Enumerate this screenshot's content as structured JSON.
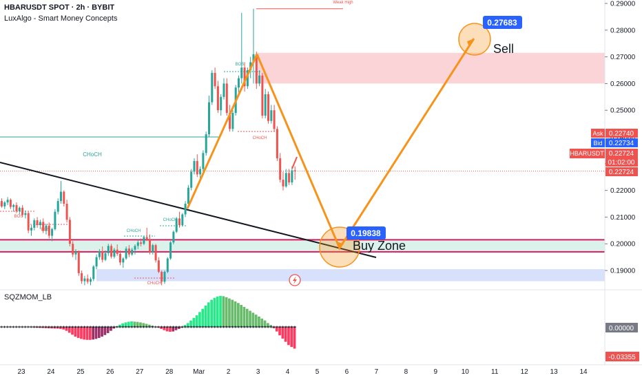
{
  "header": {
    "symbol": "HBARUSDT SPOT · 2h · BYBIT",
    "indicator": "LuxAlgo - Smart Money Concepts"
  },
  "oscillator": {
    "title": "SQZMOM_LB",
    "zero_label": "0.00000",
    "value_label": "-0.03355"
  },
  "price_axis": {
    "ticks": [
      "0.29000",
      "0.28000",
      "0.27000",
      "0.26000",
      "0.25000",
      "0.24000",
      "0.23000",
      "0.22000",
      "0.21000",
      "0.20000",
      "0.19000"
    ],
    "ask_tag": "Ask",
    "ask_value": "0.22740",
    "bid_tag": "Bid",
    "bid_value": "0.22734",
    "symbol_tag": "HBARUSDT",
    "last_value": "0.22724",
    "countdown": "01:02:00",
    "last_value2": "0.22724"
  },
  "time_axis": {
    "labels": [
      "23",
      "24",
      "25",
      "26",
      "27",
      "28",
      "Mar",
      "2",
      "3",
      "4",
      "5",
      "6",
      "7",
      "8",
      "9",
      "10",
      "11",
      "12",
      "13",
      "14"
    ]
  },
  "annotations": {
    "weak_high": "Weak High",
    "choch_big": "CHoCH",
    "bos_top": "BOS",
    "choch_red_top": "CHoCH",
    "bos_left1": "BOS",
    "bos_left2": "BOS",
    "choch_mid1": "CHoCH",
    "choch_mid2": "CHoCH",
    "choch_red_low": "CHoCH",
    "target_price": "0.27683",
    "target_text": "Sell",
    "buy_price": "0.19838",
    "buy_text": "Buy Zone"
  },
  "colors": {
    "up": "#26a69a",
    "down": "#ef5350",
    "orange": "#f7931a",
    "blue": "#2962ff",
    "crimson": "#d81b60"
  },
  "chart_data": {
    "type": "candlestick",
    "ylim": [
      0.1835,
      0.2905
    ],
    "candles": [
      [
        0.216,
        0.217,
        0.2135,
        0.214
      ],
      [
        0.214,
        0.216,
        0.213,
        0.2155
      ],
      [
        0.2155,
        0.2175,
        0.2145,
        0.2165
      ],
      [
        0.2165,
        0.217,
        0.213,
        0.2138
      ],
      [
        0.2138,
        0.215,
        0.212,
        0.2145
      ],
      [
        0.2145,
        0.2155,
        0.2115,
        0.2122
      ],
      [
        0.2122,
        0.214,
        0.211,
        0.2135
      ],
      [
        0.2135,
        0.2145,
        0.21,
        0.2108
      ],
      [
        0.2108,
        0.2125,
        0.2095,
        0.2115
      ],
      [
        0.2115,
        0.212,
        0.204,
        0.205
      ],
      [
        0.205,
        0.207,
        0.203,
        0.206
      ],
      [
        0.206,
        0.2095,
        0.205,
        0.2088
      ],
      [
        0.2088,
        0.21,
        0.206,
        0.207
      ],
      [
        0.207,
        0.209,
        0.2055,
        0.2082
      ],
      [
        0.2082,
        0.2095,
        0.204,
        0.2048
      ],
      [
        0.2048,
        0.2075,
        0.2035,
        0.2068
      ],
      [
        0.2068,
        0.208,
        0.202,
        0.203
      ],
      [
        0.203,
        0.206,
        0.201,
        0.2055
      ],
      [
        0.2055,
        0.213,
        0.205,
        0.212
      ],
      [
        0.212,
        0.217,
        0.211,
        0.216
      ],
      [
        0.216,
        0.2235,
        0.215,
        0.2195
      ],
      [
        0.2195,
        0.22,
        0.214,
        0.215
      ],
      [
        0.215,
        0.2165,
        0.208,
        0.209
      ],
      [
        0.209,
        0.21,
        0.199,
        0.2
      ],
      [
        0.2,
        0.201,
        0.195,
        0.196
      ],
      [
        0.196,
        0.198,
        0.194,
        0.197
      ],
      [
        0.197,
        0.1975,
        0.188,
        0.189
      ],
      [
        0.189,
        0.19,
        0.185,
        0.186
      ],
      [
        0.186,
        0.188,
        0.1845,
        0.187
      ],
      [
        0.187,
        0.1885,
        0.185,
        0.1858
      ],
      [
        0.1858,
        0.1875,
        0.1845,
        0.1868
      ],
      [
        0.1868,
        0.192,
        0.186,
        0.1915
      ],
      [
        0.1915,
        0.196,
        0.1905,
        0.195
      ],
      [
        0.195,
        0.198,
        0.194,
        0.1972
      ],
      [
        0.1972,
        0.199,
        0.193,
        0.194
      ],
      [
        0.194,
        0.1975,
        0.1935,
        0.1965
      ],
      [
        0.1965,
        0.2,
        0.1955,
        0.1992
      ],
      [
        0.1992,
        0.2,
        0.1945,
        0.1952
      ],
      [
        0.1952,
        0.1985,
        0.1945,
        0.1978
      ],
      [
        0.1978,
        0.1998,
        0.1955,
        0.1962
      ],
      [
        0.1962,
        0.1975,
        0.192,
        0.193
      ],
      [
        0.193,
        0.195,
        0.191,
        0.1945
      ],
      [
        0.1945,
        0.199,
        0.194,
        0.1982
      ],
      [
        0.1982,
        0.1995,
        0.195,
        0.196
      ],
      [
        0.196,
        0.1985,
        0.1955,
        0.1978
      ],
      [
        0.1978,
        0.1998,
        0.196,
        0.1992
      ],
      [
        0.1992,
        0.2015,
        0.198,
        0.2005
      ],
      [
        0.2005,
        0.202,
        0.199,
        0.2
      ],
      [
        0.2,
        0.203,
        0.1995,
        0.2025
      ],
      [
        0.2025,
        0.206,
        0.201,
        0.2015
      ],
      [
        0.2015,
        0.2035,
        0.196,
        0.1968
      ],
      [
        0.1968,
        0.2,
        0.196,
        0.1995
      ],
      [
        0.1995,
        0.2,
        0.193,
        0.1938
      ],
      [
        0.1938,
        0.195,
        0.189,
        0.1895
      ],
      [
        0.1895,
        0.19,
        0.1845,
        0.1858
      ],
      [
        0.1858,
        0.19,
        0.185,
        0.1895
      ],
      [
        0.1895,
        0.195,
        0.189,
        0.1945
      ],
      [
        0.1945,
        0.201,
        0.194,
        0.2005
      ],
      [
        0.2005,
        0.205,
        0.1998,
        0.2045
      ],
      [
        0.2045,
        0.21,
        0.204,
        0.2095
      ],
      [
        0.2095,
        0.212,
        0.206,
        0.207
      ],
      [
        0.207,
        0.2115,
        0.2065,
        0.211
      ],
      [
        0.211,
        0.216,
        0.21,
        0.215
      ],
      [
        0.215,
        0.222,
        0.214,
        0.221
      ],
      [
        0.221,
        0.228,
        0.22,
        0.227
      ],
      [
        0.227,
        0.232,
        0.226,
        0.231
      ],
      [
        0.231,
        0.2335,
        0.225,
        0.226
      ],
      [
        0.226,
        0.229,
        0.224,
        0.228
      ],
      [
        0.228,
        0.235,
        0.227,
        0.234
      ],
      [
        0.234,
        0.242,
        0.233,
        0.241
      ],
      [
        0.241,
        0.2555,
        0.24,
        0.253
      ],
      [
        0.253,
        0.265,
        0.252,
        0.264
      ],
      [
        0.264,
        0.266,
        0.258,
        0.259
      ],
      [
        0.259,
        0.261,
        0.249,
        0.25
      ],
      [
        0.25,
        0.256,
        0.248,
        0.255
      ],
      [
        0.255,
        0.262,
        0.254,
        0.26
      ],
      [
        0.26,
        0.262,
        0.248,
        0.249
      ],
      [
        0.249,
        0.252,
        0.242,
        0.243
      ],
      [
        0.243,
        0.25,
        0.242,
        0.249
      ],
      [
        0.249,
        0.2595,
        0.248,
        0.2585
      ],
      [
        0.2585,
        0.263,
        0.256,
        0.262
      ],
      [
        0.262,
        0.2865,
        0.26,
        0.266
      ],
      [
        0.266,
        0.268,
        0.257,
        0.259
      ],
      [
        0.259,
        0.266,
        0.258,
        0.265
      ],
      [
        0.265,
        0.27,
        0.262,
        0.268
      ],
      [
        0.268,
        0.288,
        0.26,
        0.271
      ],
      [
        0.271,
        0.272,
        0.258,
        0.26
      ],
      [
        0.26,
        0.265,
        0.259,
        0.263
      ],
      [
        0.263,
        0.264,
        0.247,
        0.248
      ],
      [
        0.248,
        0.258,
        0.247,
        0.256
      ],
      [
        0.256,
        0.257,
        0.245,
        0.246
      ],
      [
        0.246,
        0.252,
        0.245,
        0.25
      ],
      [
        0.25,
        0.252,
        0.242,
        0.243
      ],
      [
        0.243,
        0.244,
        0.231,
        0.232
      ],
      [
        0.232,
        0.234,
        0.223,
        0.224
      ],
      [
        0.224,
        0.227,
        0.22,
        0.2215
      ],
      [
        0.2215,
        0.228,
        0.221,
        0.2265
      ],
      [
        0.2265,
        0.228,
        0.222,
        0.223
      ],
      [
        0.223,
        0.229,
        0.222,
        0.2275
      ],
      [
        0.2275,
        0.229,
        0.224,
        0.2272
      ]
    ],
    "oscillator_values": [
      0.0003,
      0.0004,
      0.0004,
      0.0003,
      0.0003,
      0.0002,
      0.0002,
      0.0001,
      0.0001,
      -0.0002,
      -0.0005,
      -0.0008,
      -0.0011,
      -0.0014,
      -0.0016,
      -0.0018,
      -0.0021,
      -0.0023,
      -0.0025,
      -0.0026,
      -0.003,
      -0.004,
      -0.006,
      -0.009,
      -0.012,
      -0.015,
      -0.017,
      -0.0185,
      -0.0195,
      -0.02,
      -0.02,
      -0.0195,
      -0.0185,
      -0.017,
      -0.015,
      -0.0125,
      -0.0095,
      -0.006,
      -0.0025,
      0.001,
      0.0035,
      0.0055,
      0.007,
      0.008,
      0.0085,
      0.0082,
      0.0078,
      0.007,
      0.006,
      0.0048,
      0.0035,
      0.002,
      0.0005,
      -0.001,
      -0.003,
      -0.005,
      -0.0068,
      -0.0075,
      -0.007,
      -0.005,
      -0.003,
      -0.001,
      0.003,
      0.006,
      0.01,
      0.014,
      0.018,
      0.023,
      0.028,
      0.033,
      0.038,
      0.042,
      0.045,
      0.047,
      0.048,
      0.0475,
      0.046,
      0.044,
      0.042,
      0.0395,
      0.037,
      0.034,
      0.031,
      0.028,
      0.025,
      0.022,
      0.019,
      0.016,
      0.013,
      0.01,
      0.006,
      0.003,
      -0.002,
      -0.007,
      -0.013,
      -0.018,
      -0.023,
      -0.028,
      -0.031,
      -0.0335
    ],
    "oscillator_ylim": [
      -0.045,
      0.05
    ],
    "zones": [
      {
        "name": "supply",
        "from": 0.26,
        "to": 0.2715,
        "color": "#f8c6c9"
      },
      {
        "name": "demand",
        "from": 0.197,
        "to": 0.2015,
        "color": "#cfeee4"
      },
      {
        "name": "lower-demand",
        "from": 0.186,
        "to": 0.1905,
        "color": "#c9d7fb"
      }
    ],
    "levels": {
      "weak_high": 0.288,
      "choch_big": 0.24,
      "last_price": 0.22724,
      "buy_zone_top": 0.2015,
      "buy_zone_bottom": 0.197
    },
    "projection": {
      "points": [
        {
          "name": "high",
          "time": "Mar 3",
          "price": 0.271
        },
        {
          "name": "buy",
          "time": "Mar 5",
          "price": 0.19838
        },
        {
          "name": "sell",
          "time": "Mar 10",
          "price": 0.27683
        }
      ]
    }
  }
}
